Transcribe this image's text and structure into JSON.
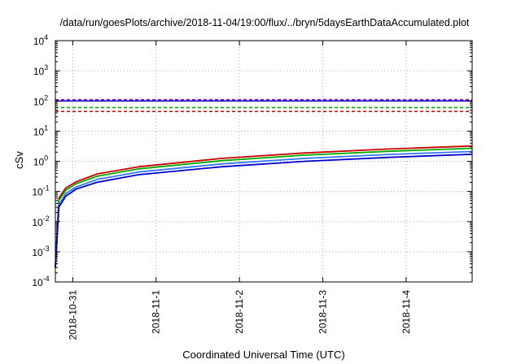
{
  "chart_data": {
    "type": "line",
    "title": "/data/run/goesPlots/archive/2018-11-04/19:00/flux/../bryn/5daysEarthDataAccumulated.plot",
    "xlabel": "Coordinated Universal Time (UTC)",
    "ylabel": "cSv",
    "y_scale": "log",
    "ylim": [
      0.0001,
      10000
    ],
    "xlim": [
      "2018-10-30 19:00",
      "2018-11-04 19:00"
    ],
    "grid": true,
    "x_ticks": [
      "2018-10-31",
      "2018-11-1",
      "2018-11-2",
      "2018-11-3",
      "2018-11-4"
    ],
    "y_ticks": [
      {
        "base": "10",
        "exp": "-4"
      },
      {
        "base": "10",
        "exp": "-3"
      },
      {
        "base": "10",
        "exp": "-2"
      },
      {
        "base": "10",
        "exp": "-1"
      },
      {
        "base": "10",
        "exp": "0"
      },
      {
        "base": "10",
        "exp": "1"
      },
      {
        "base": "10",
        "exp": "2"
      },
      {
        "base": "10",
        "exp": "3"
      },
      {
        "base": "10",
        "exp": "4"
      }
    ],
    "x_points": [
      "2018-10-30 19:00",
      "2018-10-30 20:00",
      "2018-10-30 22:00",
      "2018-10-31 01:00",
      "2018-10-31 07:00",
      "2018-10-31 19:00",
      "2018-11-01 19:00",
      "2018-11-02 19:00",
      "2018-11-03 19:00",
      "2018-11-04 19:00"
    ],
    "series": [
      {
        "color": "#cc0000",
        "values": [
          0.0003,
          0.06,
          0.13,
          0.21,
          0.38,
          0.66,
          1.25,
          1.9,
          2.55,
          3.2
        ]
      },
      {
        "color": "#00aa00",
        "values": [
          0.0003,
          0.05,
          0.11,
          0.18,
          0.32,
          0.56,
          1.05,
          1.6,
          2.15,
          2.7
        ]
      },
      {
        "color": "#3377ff",
        "values": [
          0.0003,
          0.035,
          0.085,
          0.14,
          0.25,
          0.44,
          0.82,
          1.25,
          1.68,
          2.1
        ]
      },
      {
        "color": "#0000cc",
        "values": [
          0.0003,
          0.03,
          0.07,
          0.12,
          0.2,
          0.36,
          0.66,
          1.0,
          1.35,
          1.7
        ]
      }
    ],
    "thresholds": [
      {
        "color": "#aa00cc",
        "value": 110,
        "style": "dashed"
      },
      {
        "color": "#0000cc",
        "value": 100,
        "style": "solid"
      },
      {
        "color": "#00aa00",
        "value": 60,
        "style": "dashed"
      },
      {
        "color": "#cc0000",
        "value": 45,
        "style": "dashed"
      }
    ]
  }
}
